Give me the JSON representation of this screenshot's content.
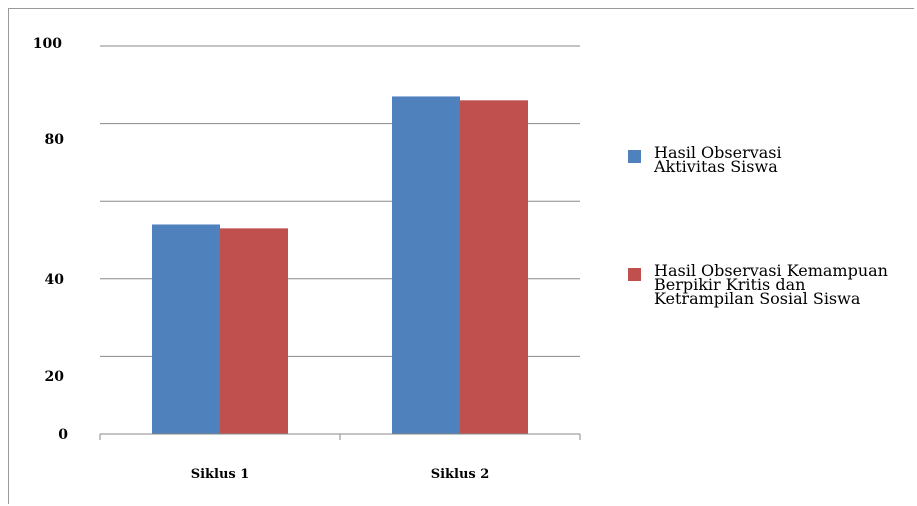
{
  "chart_data": {
    "type": "bar",
    "categories": [
      "Siklus 1",
      "Siklus 2"
    ],
    "series": [
      {
        "name": "Hasil Observasi\nAktivitas Siswa",
        "values": [
          54,
          87
        ],
        "color": "#4f81bd"
      },
      {
        "name": "Hasil Observasi Kemampuan\nBerpikir  Kritis dan\nKetrampilan Sosial Siswa",
        "values": [
          53,
          86
        ],
        "color": "#c0504d"
      }
    ],
    "y_tick_labels": [
      "0",
      "20",
      "40",
      "80",
      "100"
    ],
    "ylim": [
      0,
      100
    ],
    "grid": true,
    "legend": "right",
    "title": "",
    "xlabel": "",
    "ylabel": ""
  }
}
